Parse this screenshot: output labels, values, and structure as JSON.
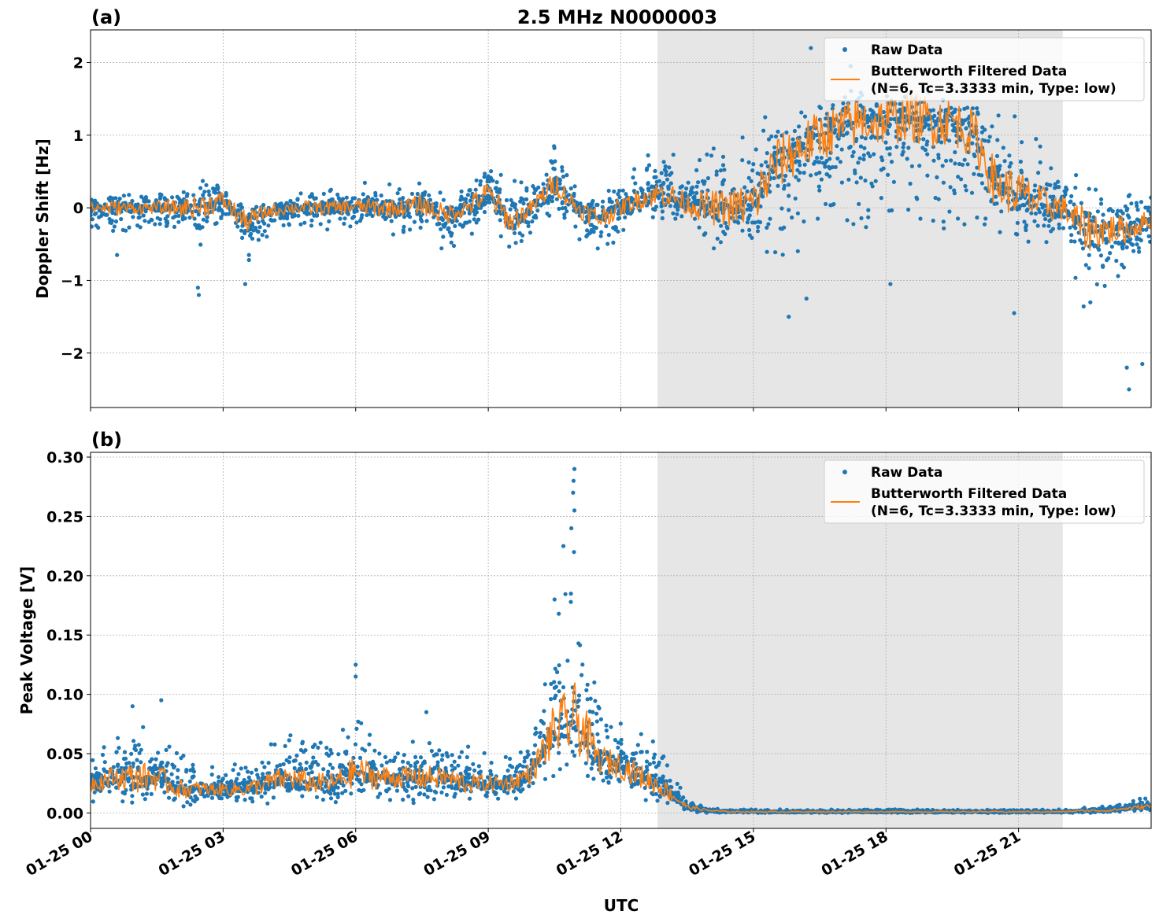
{
  "chart_data": [
    {
      "type": "scatter",
      "panel_label": "(a)",
      "title": "2.5 MHz N0000003",
      "xlabel": "",
      "ylabel": "Doppler Shift [Hz]",
      "xlim_hours": [
        0,
        24
      ],
      "ylim": [
        -2.75,
        2.45
      ],
      "yticks": [
        -2,
        -1,
        0,
        1,
        2
      ],
      "ytick_labels": [
        "−2",
        "−1",
        "0",
        "1",
        "2"
      ],
      "xtick_labels": [
        "01-25 00",
        "01-25 03",
        "01-25 06",
        "01-25 09",
        "01-25 12",
        "01-25 15",
        "01-25 18",
        "01-25 21"
      ],
      "xticks_hours": [
        0,
        3,
        6,
        9,
        12,
        15,
        18,
        21
      ],
      "grid": true,
      "shaded_span_hours": [
        12.83,
        22.0
      ],
      "shade_color": "#e6e6e6",
      "legend": {
        "placement": "upper right",
        "entries": [
          "Raw Data",
          "Butterworth Filtered Data",
          "(N=6, Tc=3.3333 min, Type: low)"
        ]
      },
      "colors": {
        "raw": "#1f77b4",
        "filtered": "#ff7f0e"
      },
      "series_summary_note_hours": [
        0,
        0.5,
        1,
        1.5,
        2,
        2.5,
        3,
        3.5,
        4,
        4.5,
        5,
        5.5,
        6,
        6.5,
        7,
        7.5,
        8,
        8.5,
        9,
        9.5,
        10,
        10.5,
        11,
        11.5,
        12,
        12.5,
        13,
        13.5,
        14,
        14.5,
        15,
        15.5,
        16,
        16.5,
        17,
        17.5,
        18,
        18.5,
        19,
        19.5,
        20,
        20.5,
        21,
        21.5,
        22,
        22.5,
        23,
        23.5,
        24
      ],
      "filtered": [
        0,
        0,
        0,
        0,
        0,
        0.02,
        0.1,
        -0.2,
        -0.05,
        0,
        0,
        0,
        0.02,
        0,
        0,
        0.05,
        -0.1,
        0,
        0.2,
        -0.2,
        0,
        0.35,
        0,
        -0.15,
        0,
        0.15,
        0.2,
        0.05,
        0,
        0,
        0.05,
        0.6,
        0.8,
        1.0,
        1.1,
        1.2,
        1.2,
        1.25,
        1.2,
        1.2,
        1.0,
        0.3,
        0.2,
        0.05,
        0,
        -0.3,
        -0.3,
        -0.3,
        -0.15
      ],
      "raw_min": [
        -0.3,
        -0.4,
        -0.3,
        -0.3,
        -0.4,
        -0.6,
        -0.3,
        -0.8,
        -0.4,
        -0.3,
        -0.3,
        -0.3,
        -0.3,
        -0.3,
        -0.4,
        -0.4,
        -0.7,
        -0.4,
        -0.3,
        -0.6,
        -0.4,
        -0.1,
        -0.4,
        -0.8,
        -0.4,
        -0.2,
        -0.2,
        -0.3,
        -0.6,
        -0.5,
        -0.7,
        -0.8,
        -0.6,
        -0.5,
        -0.4,
        -0.3,
        -0.3,
        -0.2,
        -0.3,
        -0.3,
        -0.4,
        -0.5,
        -0.6,
        -0.5,
        -0.5,
        -1.5,
        -1.2,
        -0.8,
        -0.6
      ],
      "raw_max": [
        0.15,
        0.2,
        0.2,
        0.2,
        0.3,
        0.4,
        0.45,
        0.1,
        0.15,
        0.2,
        0.3,
        0.3,
        0.3,
        0.5,
        0.3,
        0.4,
        0.2,
        0.3,
        0.8,
        0.4,
        0.3,
        0.9,
        0.3,
        0.2,
        0.3,
        0.7,
        0.9,
        0.6,
        0.8,
        1.0,
        1.3,
        1.4,
        1.45,
        1.5,
        1.6,
        1.7,
        1.7,
        1.8,
        1.8,
        1.6,
        1.6,
        1.4,
        1.3,
        1.0,
        0.5,
        0.3,
        0.2,
        0.2,
        0.2
      ],
      "outliers": [
        [
          2.45,
          -1.2
        ],
        [
          2.43,
          -1.1
        ],
        [
          0.6,
          -0.65
        ],
        [
          3.5,
          -1.05
        ],
        [
          16.3,
          2.2
        ],
        [
          17.2,
          1.95
        ],
        [
          15.8,
          -1.5
        ],
        [
          20.9,
          -1.45
        ],
        [
          23.5,
          -2.5
        ],
        [
          23.45,
          -2.2
        ],
        [
          23.8,
          -2.15
        ],
        [
          22.3,
          0.45
        ],
        [
          18.1,
          -1.05
        ],
        [
          16.2,
          -1.25
        ]
      ]
    },
    {
      "type": "scatter",
      "panel_label": "(b)",
      "xlabel": "UTC",
      "ylabel": "Peak Voltage [V]",
      "xlim_hours": [
        0,
        24
      ],
      "ylim": [
        -0.013,
        0.304
      ],
      "yticks": [
        0,
        0.05,
        0.1,
        0.15,
        0.2,
        0.25,
        0.3
      ],
      "ytick_labels": [
        "0.00",
        "0.05",
        "0.10",
        "0.15",
        "0.20",
        "0.25",
        "0.30"
      ],
      "xtick_labels": [
        "01-25 00",
        "01-25 03",
        "01-25 06",
        "01-25 09",
        "01-25 12",
        "01-25 15",
        "01-25 18",
        "01-25 21"
      ],
      "xticks_hours": [
        0,
        3,
        6,
        9,
        12,
        15,
        18,
        21
      ],
      "grid": true,
      "shaded_span_hours": [
        12.83,
        22.0
      ],
      "legend": {
        "placement": "upper right",
        "entries": [
          "Raw Data",
          "Butterworth Filtered Data",
          "(N=6, Tc=3.3333 min, Type: low)"
        ]
      },
      "filtered": [
        0.025,
        0.03,
        0.03,
        0.03,
        0.02,
        0.02,
        0.02,
        0.02,
        0.025,
        0.03,
        0.025,
        0.025,
        0.035,
        0.03,
        0.03,
        0.03,
        0.03,
        0.025,
        0.025,
        0.025,
        0.035,
        0.07,
        0.08,
        0.045,
        0.04,
        0.03,
        0.02,
        0.005,
        0.002,
        0.001,
        0.001,
        0.001,
        0.001,
        0.001,
        0.001,
        0.001,
        0.001,
        0.001,
        0.001,
        0.001,
        0.001,
        0.001,
        0.001,
        0.001,
        0.001,
        0.002,
        0.002,
        0.004,
        0.006
      ],
      "raw_min": [
        0.005,
        0.005,
        0.005,
        0.005,
        0.005,
        0.005,
        0.008,
        0.008,
        0.008,
        0.008,
        0.008,
        0.008,
        0.01,
        0.008,
        0.008,
        0.008,
        0.008,
        0.008,
        0.01,
        0.01,
        0.015,
        0.025,
        0.03,
        0.02,
        0.015,
        0.01,
        0.005,
        0,
        0,
        0,
        0,
        0,
        0,
        0,
        0,
        0,
        0,
        0,
        0,
        0,
        0,
        0,
        0,
        0,
        0,
        0,
        0,
        0.001,
        0.002
      ],
      "raw_max": [
        0.05,
        0.06,
        0.08,
        0.07,
        0.05,
        0.045,
        0.04,
        0.045,
        0.06,
        0.07,
        0.06,
        0.06,
        0.09,
        0.07,
        0.06,
        0.07,
        0.06,
        0.06,
        0.05,
        0.05,
        0.07,
        0.16,
        0.21,
        0.09,
        0.08,
        0.07,
        0.05,
        0.01,
        0.004,
        0.003,
        0.003,
        0.003,
        0.003,
        0.003,
        0.003,
        0.003,
        0.003,
        0.003,
        0.003,
        0.003,
        0.003,
        0.003,
        0.003,
        0.003,
        0.003,
        0.005,
        0.006,
        0.009,
        0.015
      ],
      "outliers": [
        [
          10.95,
          0.29
        ],
        [
          10.93,
          0.28
        ],
        [
          10.92,
          0.27
        ],
        [
          10.95,
          0.255
        ],
        [
          10.88,
          0.24
        ],
        [
          10.7,
          0.225
        ],
        [
          10.94,
          0.22
        ],
        [
          10.5,
          0.18
        ],
        [
          6.0,
          0.125
        ],
        [
          6.0,
          0.115
        ],
        [
          1.6,
          0.095
        ],
        [
          0.95,
          0.09
        ],
        [
          11.4,
          0.11
        ],
        [
          7.6,
          0.085
        ]
      ]
    }
  ]
}
